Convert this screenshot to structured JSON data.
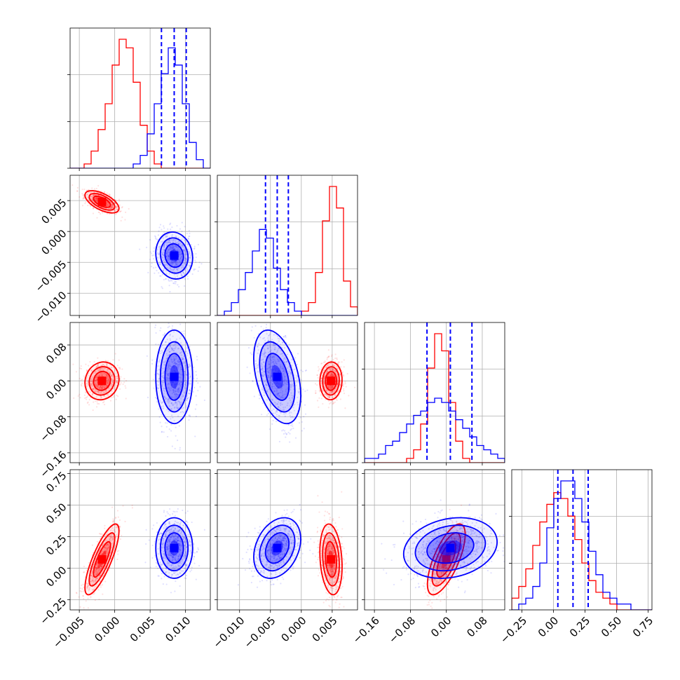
{
  "chart_data": {
    "type": "corner",
    "grid": true,
    "colors": {
      "red": "#ff0000",
      "blue": "#0000ff"
    },
    "params": [
      {
        "id": "p0",
        "range": [
          -0.0063,
          0.0135
        ],
        "ticks": [
          -0.005,
          0.0,
          0.005,
          0.01
        ],
        "tick_labels": [
          "−0.005",
          "0.000",
          "0.005",
          "0.010"
        ]
      },
      {
        "id": "p1",
        "range": [
          -0.0136,
          0.0091
        ],
        "ticks": [
          -0.01,
          -0.005,
          0.0,
          0.005
        ],
        "tick_labels": [
          "−0.010",
          "−0.005",
          "0.000",
          "0.005"
        ]
      },
      {
        "id": "p2",
        "range": [
          -0.182,
          0.13
        ],
        "ticks": [
          -0.16,
          -0.08,
          0.0,
          0.08
        ],
        "tick_labels": [
          "−0.16",
          "−0.08",
          "0.00",
          "0.08"
        ]
      },
      {
        "id": "p3",
        "range": [
          -0.33,
          0.78
        ],
        "ticks": [
          -0.25,
          0.0,
          0.25,
          0.5,
          0.75
        ],
        "tick_labels": [
          "−0.25",
          "0.00",
          "0.25",
          "0.50",
          "0.75"
        ]
      }
    ],
    "series": [
      {
        "color": "red",
        "mean": [
          -0.0018,
          0.0048,
          0.0,
          0.07
        ],
        "sd": [
          0.0012,
          0.0009,
          0.021,
          0.14
        ],
        "corr": [
          [
            1,
            -0.6,
            0.1,
            0.8
          ],
          [
            -0.6,
            1,
            0.05,
            -0.2
          ],
          [
            0.1,
            0.05,
            1,
            0.7
          ],
          [
            0.8,
            -0.2,
            0.7,
            1
          ]
        ],
        "quantile_lines": false
      },
      {
        "color": "blue",
        "mean": [
          0.0084,
          -0.0039,
          0.009,
          0.16
        ],
        "sd": [
          0.0013,
          0.0019,
          0.052,
          0.12
        ],
        "corr": [
          [
            1,
            -0.1,
            0.0,
            0.0
          ],
          [
            -0.1,
            1,
            -0.4,
            0.3
          ],
          [
            0.0,
            -0.4,
            1,
            0.2
          ],
          [
            0.0,
            0.3,
            0.2,
            1
          ]
        ],
        "quantiles": [
          [
            0.0066,
            0.0084,
            0.0101
          ],
          [
            -0.0058,
            -0.0039,
            -0.0021
          ],
          [
            -0.043,
            0.009,
            0.057
          ],
          [
            0.035,
            0.155,
            0.275
          ]
        ],
        "quantile_lines": true
      }
    ],
    "hist_ticks": [
      [
        0.0,
        0.333,
        0.667
      ],
      [
        0.0,
        0.333,
        0.667
      ],
      [
        0.0,
        0.333,
        0.667
      ],
      [
        0.0,
        0.333,
        0.667
      ]
    ],
    "histograms": [
      {
        "bins": 20,
        "red": [
          0,
          0,
          1,
          4,
          9,
          15,
          24,
          30,
          28,
          20,
          10,
          4,
          1,
          0,
          0,
          0,
          0,
          0,
          0,
          0
        ],
        "blue": [
          0,
          0,
          0,
          0,
          0,
          0,
          0,
          0,
          0,
          1,
          3,
          8,
          15,
          22,
          28,
          24,
          15,
          6,
          2,
          0
        ]
      },
      {
        "bins": 20,
        "red": [
          0,
          0,
          0,
          0,
          0,
          0,
          0,
          0,
          0,
          0,
          0,
          0,
          1,
          3,
          10,
          22,
          30,
          25,
          8,
          2
        ],
        "blue": [
          0,
          1,
          3,
          6,
          10,
          15,
          20,
          18,
          11,
          6,
          3,
          1,
          0,
          0,
          0,
          0,
          0,
          0,
          0,
          0
        ]
      },
      {
        "bins": 20,
        "red": [
          0,
          0,
          0,
          0,
          0,
          0,
          1,
          3,
          9,
          22,
          30,
          26,
          14,
          5,
          1,
          0,
          0,
          0,
          0,
          0
        ],
        "blue": [
          1,
          1,
          2,
          4,
          5,
          7,
          9,
          11,
          12,
          14,
          15,
          14,
          12,
          10,
          8,
          6,
          4,
          3,
          2,
          1
        ]
      },
      {
        "bins": 20,
        "red": [
          2,
          4,
          7,
          11,
          15,
          18,
          20,
          19,
          16,
          12,
          8,
          5,
          3,
          2,
          1,
          0,
          0,
          0,
          0,
          0
        ],
        "blue": [
          0,
          1,
          2,
          4,
          8,
          14,
          19,
          22,
          22,
          19,
          15,
          10,
          6,
          3,
          2,
          1,
          1,
          0,
          0,
          0
        ]
      }
    ]
  }
}
